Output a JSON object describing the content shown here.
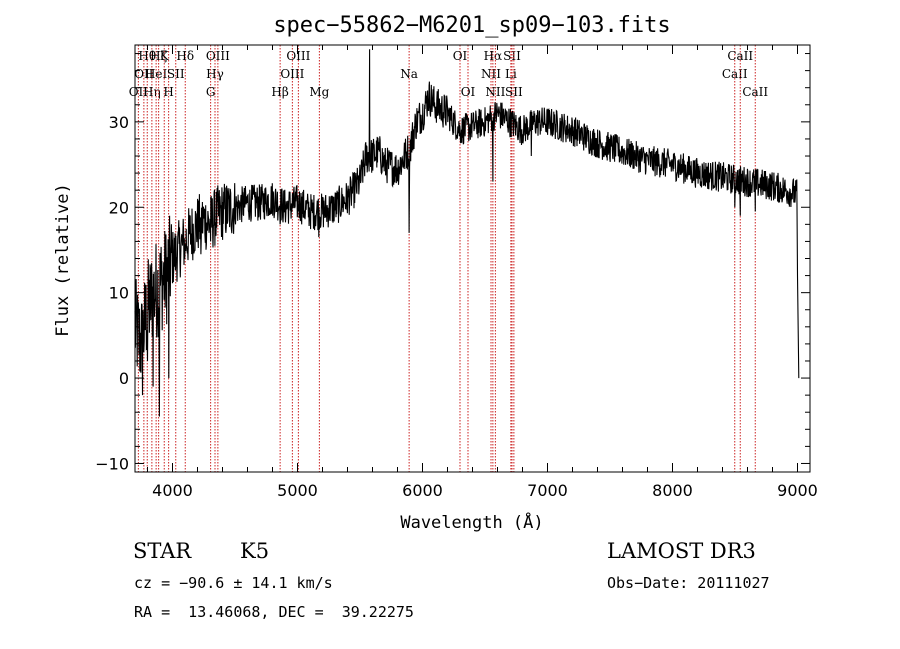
{
  "chart_data": {
    "type": "line",
    "title": "spec−55862−M6201_sp09−103.fits",
    "xlabel": "Wavelength (Å)",
    "ylabel": "Flux (relative)",
    "xlim": [
      3700,
      9100
    ],
    "ylim": [
      -11,
      39
    ],
    "xticks": [
      4000,
      5000,
      6000,
      7000,
      8000,
      9000
    ],
    "yticks": [
      -10,
      0,
      10,
      20,
      30
    ],
    "ytick_labels": [
      "−10",
      "0",
      "10",
      "20",
      "30"
    ],
    "series": [
      {
        "name": "spectrum",
        "color": "#000000",
        "points": [
          [
            3700,
            6
          ],
          [
            3750,
            4
          ],
          [
            3800,
            8
          ],
          [
            3850,
            10
          ],
          [
            3900,
            11
          ],
          [
            3950,
            12
          ],
          [
            4000,
            14
          ],
          [
            4050,
            15
          ],
          [
            4100,
            16
          ],
          [
            4150,
            17
          ],
          [
            4200,
            18
          ],
          [
            4250,
            18.5
          ],
          [
            4300,
            18
          ],
          [
            4350,
            19
          ],
          [
            4400,
            19.5
          ],
          [
            4500,
            20
          ],
          [
            4600,
            20.5
          ],
          [
            4700,
            20.5
          ],
          [
            4800,
            21
          ],
          [
            4900,
            20
          ],
          [
            5000,
            20.5
          ],
          [
            5100,
            19.5
          ],
          [
            5200,
            19.5
          ],
          [
            5300,
            20
          ],
          [
            5400,
            21
          ],
          [
            5500,
            23
          ],
          [
            5550,
            26
          ],
          [
            5600,
            26
          ],
          [
            5650,
            26.5
          ],
          [
            5700,
            25
          ],
          [
            5800,
            24.5
          ],
          [
            5900,
            27
          ],
          [
            5950,
            30
          ],
          [
            6000,
            31
          ],
          [
            6050,
            33
          ],
          [
            6100,
            32
          ],
          [
            6200,
            31
          ],
          [
            6300,
            29
          ],
          [
            6400,
            29.5
          ],
          [
            6500,
            30
          ],
          [
            6600,
            31
          ],
          [
            6700,
            30
          ],
          [
            6800,
            29
          ],
          [
            6900,
            30
          ],
          [
            7000,
            30
          ],
          [
            7200,
            29
          ],
          [
            7400,
            27.5
          ],
          [
            7600,
            26.5
          ],
          [
            7800,
            25.5
          ],
          [
            8000,
            25
          ],
          [
            8200,
            24
          ],
          [
            8400,
            23.5
          ],
          [
            8600,
            23
          ],
          [
            8800,
            22.5
          ],
          [
            9000,
            21.5
          ]
        ],
        "features": [
          {
            "x": 3760,
            "y": -2
          },
          {
            "x": 3800,
            "y": 2
          },
          {
            "x": 3845,
            "y": -1
          },
          {
            "x": 3895,
            "y": -4.5
          },
          {
            "x": 3935,
            "y": 10
          },
          {
            "x": 3970,
            "y": 0
          },
          {
            "x": 4100,
            "y": 15
          },
          {
            "x": 4227,
            "y": 14.5
          },
          {
            "x": 4305,
            "y": 16
          },
          {
            "x": 4861,
            "y": 18
          },
          {
            "x": 5170,
            "y": 16.5
          },
          {
            "x": 5577,
            "y": 38.5
          },
          {
            "x": 5893,
            "y": 17
          },
          {
            "x": 6563,
            "y": 23
          },
          {
            "x": 6870,
            "y": 26
          },
          {
            "x": 8498,
            "y": 20
          },
          {
            "x": 8542,
            "y": 19
          },
          {
            "x": 8662,
            "y": 19.5
          },
          {
            "x": 9010,
            "y": 0
          },
          {
            "x": 9000,
            "y": 12
          }
        ]
      }
    ],
    "line_markers": [
      {
        "x": 3727,
        "label": "OII",
        "row": 2
      },
      {
        "x": 3771,
        "label": "OII",
        "row": 1
      },
      {
        "x": 3798,
        "label": "Hθ",
        "row": 0
      },
      {
        "x": 3835,
        "label": "Hη",
        "row": 2
      },
      {
        "x": 3869,
        "label": "HeI",
        "row": 1
      },
      {
        "x": 3889,
        "label": "Hζ",
        "row": 0
      },
      {
        "x": 3934,
        "label": "K",
        "row": 0
      },
      {
        "x": 3969,
        "label": "H",
        "row": 2
      },
      {
        "x": 4026,
        "label": "SII",
        "row": 1
      },
      {
        "x": 4102,
        "label": "Hδ",
        "row": 0
      },
      {
        "x": 4305,
        "label": "G",
        "row": 2
      },
      {
        "x": 4340,
        "label": "Hγ",
        "row": 1
      },
      {
        "x": 4363,
        "label": "OIII",
        "row": 0
      },
      {
        "x": 4861,
        "label": "Hβ",
        "row": 2
      },
      {
        "x": 4959,
        "label": "OIII",
        "row": 1
      },
      {
        "x": 5007,
        "label": "OIII",
        "row": 0
      },
      {
        "x": 5175,
        "label": "Mg",
        "row": 2
      },
      {
        "x": 5893,
        "label": "Na",
        "row": 1
      },
      {
        "x": 6300,
        "label": "OI",
        "row": 0
      },
      {
        "x": 6364,
        "label": "OI",
        "row": 2
      },
      {
        "x": 6548,
        "label": "NII",
        "row": 1
      },
      {
        "x": 6563,
        "label": "Hα",
        "row": 0
      },
      {
        "x": 6583,
        "label": "NII",
        "row": 2
      },
      {
        "x": 6707,
        "label": "Li",
        "row": 1
      },
      {
        "x": 6716,
        "label": "SII",
        "row": 0
      },
      {
        "x": 6731,
        "label": "SII",
        "row": 2
      },
      {
        "x": 8498,
        "label": "CaII",
        "row": 1
      },
      {
        "x": 8542,
        "label": "CaII",
        "row": 0
      },
      {
        "x": 8662,
        "label": "CaII",
        "row": 2
      }
    ],
    "marker_color": "#cc2222"
  },
  "info": {
    "class": "STAR",
    "subclass": "K5",
    "survey": "LAMOST DR3",
    "cz": "cz = −90.6 ± 14.1 km/s",
    "obs_date": "Obs−Date: 20111027",
    "radec": "RA =  13.46068, DEC =  39.22275"
  }
}
